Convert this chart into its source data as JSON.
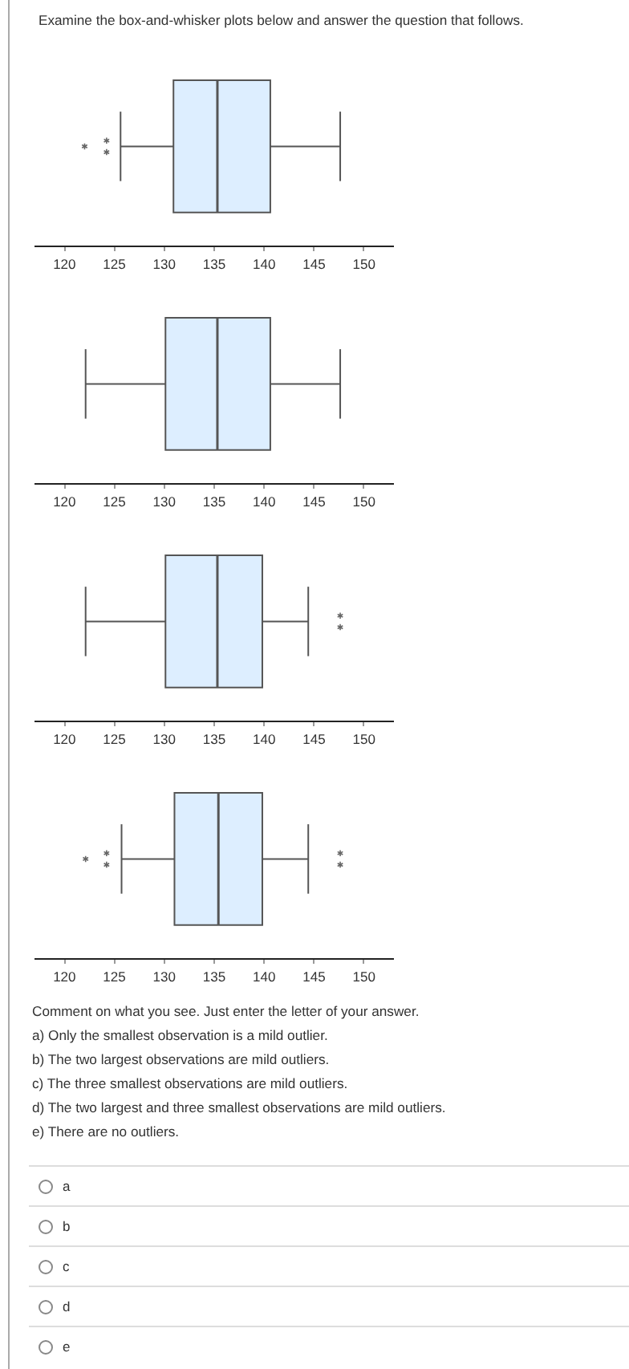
{
  "chart_data": [
    {
      "type": "box",
      "title": "Examine the box-and-whisker plots below and answer the question that follows.",
      "orientation": "horizontal",
      "categories": [
        null
      ],
      "xlim": [
        117,
        153
      ],
      "xticks": [
        120,
        125,
        130,
        135,
        140,
        145,
        150
      ],
      "tick_labels": "x",
      "marker": "star",
      "series": [
        {
          "color": "#ddeeff",
          "boxes": [
            {
              "low": 125.7,
              "q1": 131,
              "median": 135.4,
              "q3": 140.7,
              "high": 147.7,
              "outliers": [
                122.1,
                124.3,
                124.3
              ]
            }
          ]
        }
      ]
    },
    {
      "type": "box",
      "orientation": "horizontal",
      "categories": [
        null
      ],
      "xlim": [
        117,
        153
      ],
      "xticks": [
        120,
        125,
        130,
        135,
        140,
        145,
        150
      ],
      "tick_labels": "x",
      "marker": "star",
      "series": [
        {
          "color": "#ddeeff",
          "boxes": [
            {
              "low": 122.2,
              "q1": 130.2,
              "median": 135.4,
              "q3": 140.7,
              "high": 147.7
            }
          ]
        }
      ]
    },
    {
      "type": "box",
      "orientation": "horizontal",
      "categories": [
        null
      ],
      "xlim": [
        117,
        153
      ],
      "xticks": [
        120,
        125,
        130,
        135,
        140,
        145,
        150
      ],
      "tick_labels": "x",
      "marker": "star",
      "series": [
        {
          "color": "#ddeeff",
          "boxes": [
            {
              "low": 122.2,
              "q1": 130.2,
              "median": 135.4,
              "q3": 139.9,
              "high": 144.5,
              "outliers": [
                147.7,
                147.7
              ]
            }
          ]
        }
      ]
    },
    {
      "type": "box",
      "orientation": "horizontal",
      "categories": [
        null
      ],
      "xlim": [
        117,
        153
      ],
      "xticks": [
        120,
        125,
        130,
        135,
        140,
        145,
        150
      ],
      "tick_labels": "x",
      "marker": "star",
      "series": [
        {
          "color": "#ddeeff",
          "boxes": [
            {
              "low": 125.8,
              "q1": 131.1,
              "median": 135.5,
              "q3": 139.9,
              "high": 144.5,
              "outliers": [
                122.2,
                124.3,
                124.3,
                147.7,
                147.7
              ]
            }
          ]
        }
      ],
      "annotations": [
        "Comment on what you see. Just enter the letter of your answer.",
        "a) Only the smallest observation is a mild outlier.",
        "b) The two largest observations are mild outliers.",
        "c) The three smallest observations are mild outliers.",
        "d) The two largest and three smallest observations are mild outliers.",
        "e) There are no outliers."
      ]
    },
    {
      "type": "other",
      "annotations": [
        "a",
        "b",
        "c",
        "d",
        "e"
      ]
    }
  ]
}
